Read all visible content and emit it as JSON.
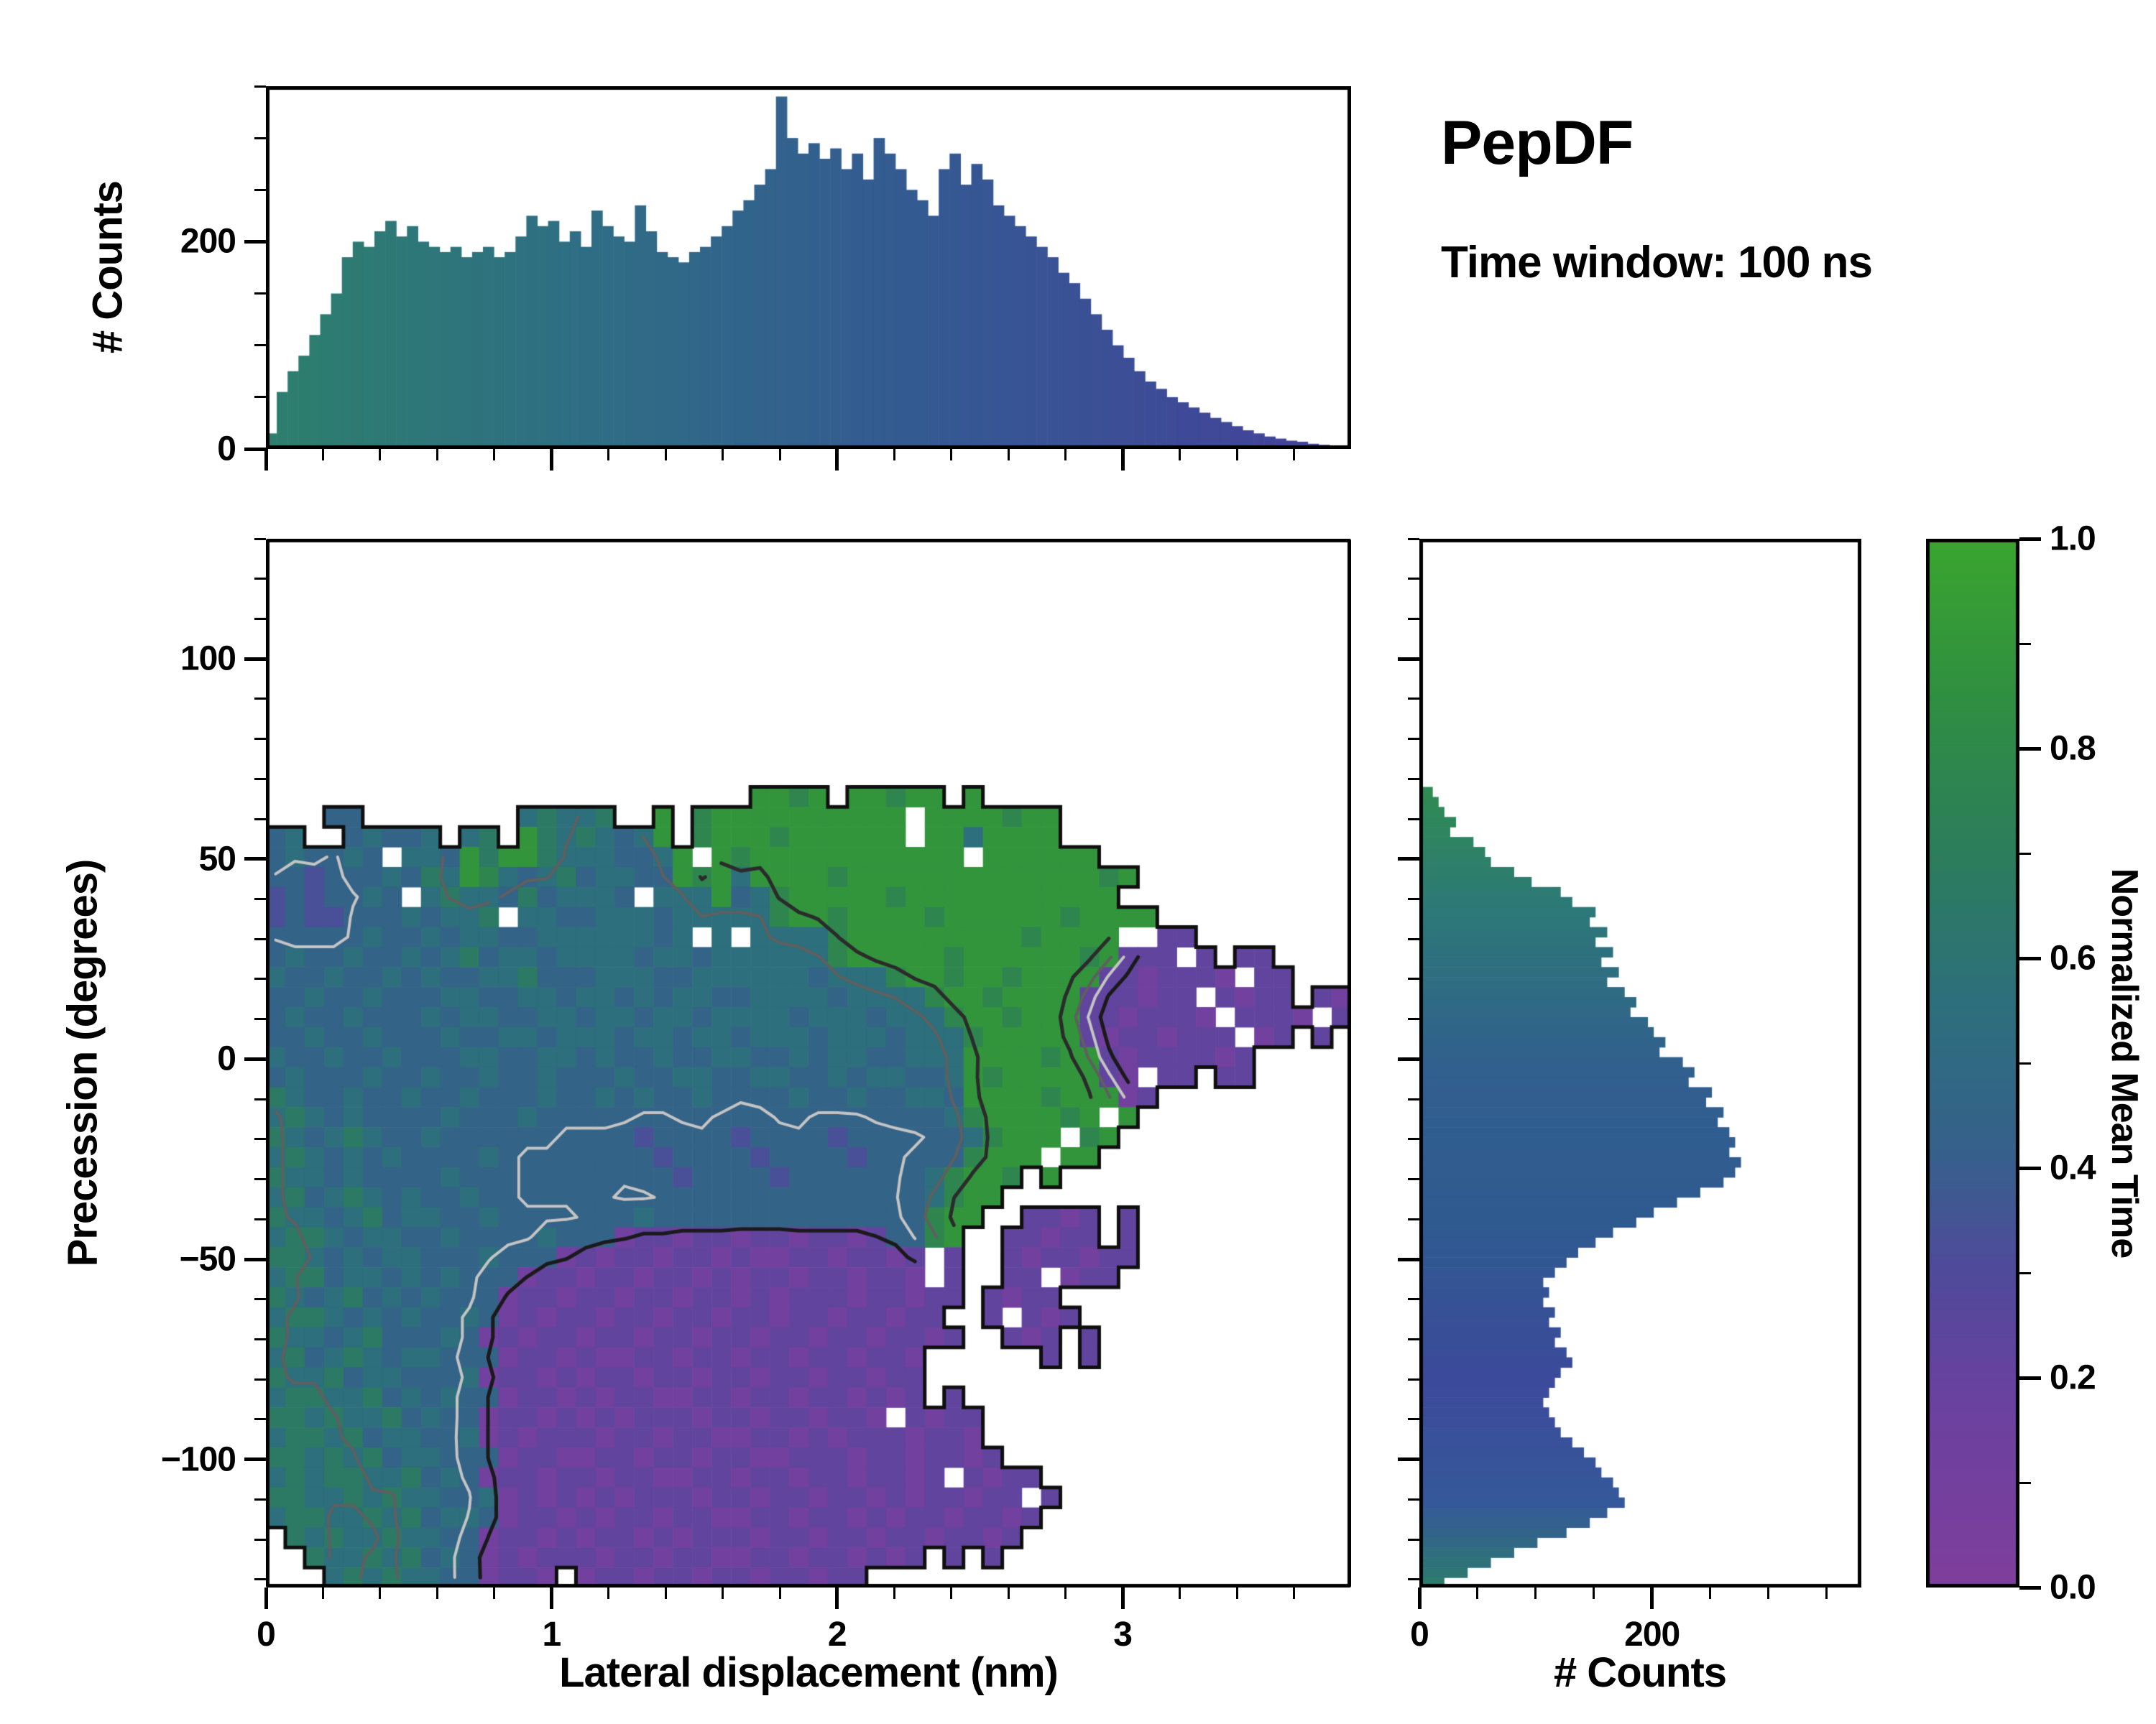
{
  "header": {
    "title": "PepDF",
    "subtitle": "Time window: 100 ns"
  },
  "colors": {
    "background": "#ffffff",
    "axis": "#000000",
    "text": "#000000",
    "boundary": "#0f0f0f"
  },
  "colormap": {
    "stops": [
      {
        "t": 0.0,
        "c": "#7f3e9c"
      },
      {
        "t": 0.18,
        "c": "#6a419f"
      },
      {
        "t": 0.3,
        "c": "#504a9b"
      },
      {
        "t": 0.42,
        "c": "#35618b"
      },
      {
        "t": 0.56,
        "c": "#2d6f7c"
      },
      {
        "t": 0.7,
        "c": "#2c7d5c"
      },
      {
        "t": 0.85,
        "c": "#2f8f41"
      },
      {
        "t": 1.0,
        "c": "#3aa52e"
      }
    ]
  },
  "chart_data": [
    {
      "type": "bar",
      "role": "top-marginal-histogram",
      "ylabel": "# Counts",
      "xlabel": "",
      "xlim": [
        0,
        3.8
      ],
      "ylim": [
        0,
        350
      ],
      "yticks": [
        0,
        200
      ],
      "bins": 100,
      "values": [
        15,
        55,
        75,
        90,
        110,
        130,
        150,
        185,
        200,
        195,
        210,
        220,
        205,
        215,
        200,
        195,
        190,
        195,
        185,
        190,
        195,
        185,
        190,
        205,
        225,
        215,
        220,
        200,
        210,
        195,
        230,
        215,
        205,
        200,
        235,
        210,
        190,
        185,
        180,
        190,
        195,
        205,
        215,
        230,
        240,
        255,
        270,
        340,
        300,
        285,
        295,
        280,
        290,
        270,
        285,
        260,
        300,
        285,
        270,
        250,
        240,
        225,
        270,
        285,
        255,
        275,
        260,
        235,
        225,
        215,
        205,
        195,
        185,
        170,
        160,
        145,
        130,
        115,
        100,
        88,
        75,
        65,
        58,
        50,
        45,
        40,
        35,
        30,
        26,
        22,
        18,
        15,
        12,
        10,
        8,
        7,
        5,
        4,
        3,
        2
      ],
      "gradient": {
        "stops": [
          {
            "t": 0.0,
            "c": "#2d7f6d"
          },
          {
            "t": 0.3,
            "c": "#2f6d85"
          },
          {
            "t": 0.6,
            "c": "#345a92"
          },
          {
            "t": 1.0,
            "c": "#44419a"
          }
        ]
      }
    },
    {
      "type": "heatmap",
      "role": "joint-2d-histogram",
      "xlabel": "Lateral displacement (nm)",
      "ylabel": "Precession (degrees)",
      "value_label": "Normalized Mean Time",
      "xlim": [
        0,
        3.8
      ],
      "ylim": [
        -132,
        130
      ],
      "xticks": [
        0,
        1,
        2,
        3
      ],
      "yticks": [
        -100,
        -50,
        0,
        50,
        100
      ],
      "vmin": 0.0,
      "vmax": 1.0,
      "cbar_ticks": [
        0.0,
        0.2,
        0.4,
        0.6,
        0.8,
        1.0
      ],
      "contours": {
        "levels": [
          0.3,
          0.45,
          0.6,
          0.78
        ],
        "colors": [
          "#1a1a1a",
          "#c4c4c4",
          "#5f5f5f",
          "#2b2b2b"
        ],
        "widths": [
          5,
          4,
          4,
          5
        ]
      },
      "grid": {
        "cols": 56,
        "rows": 40,
        "x0": 0,
        "x1": 3.8,
        "y_top": 68,
        "y_bottom": -132,
        "encoding": "each char: digit d => value d/9 of Normalized Mean Time, '.' => empty bin",
        "rows_data": [
          ".........................8878.88788.8..................",
          "...44........56556..8.78888888888.8888788...............",
          "45..45445.56.86565458.78887888888.8858888...............",
          "454454.554868865554458.8788888888888.888888.............",
          "443444546587545645544878588887888888888888878...........",
          "3434454.56554645554.555845788888788888888888............",
          "343344454556.554455545555578878888788888878888..........",
          "4444454454554455555545 5.5555788888888878888 .22........",
          "45445445456455455554554555555788888788888878222.2.22....",
          "54454454544556444555445555554555788788788882212221 22...",
          "445445444554455455454554455554555578878888222122 2122.212",
          "4544544454554455455455455554555455578878882212221 2221.22",
          "44544544454455455545545545554555455578888821221222 12.2..",
          "544544544455445545445445544545544555888878821222212.....",
          "454445445445445444544554455445455445878888821 22.22......",
          "6544544544544454454544544445445445548888788812..........",
          "5654544445444544444444444444444444457888878 8...........",
          "65456544544444444443444434444344444457888 78............",
          "5654545444454444444434444344443444447888 88.............",
          "655454444544444444444344443444444457887 8...............",
          "56456545445444444444444444444444445788..................",
          "6554564554454444444544444444444444788..2212.2...........",
          "566545544544445444122122122122124478..22122.2...........",
          "6654545544454441212212212112212212 2..2122122...........",
          "5664554545444122122122121221221221 2..22.122............",
          "654564545444122122122122121222122122.2122...............",
          "56654545445412122122122122122122122..2.212..............",
          "655456444541212212212212212212212212..212.2.............",
          "5645654554441221211221221221221221......2.2.............",
          "6556455444512212122122122122122122......................",
          "5665564545441221212211221221221212 2....................",
          "66565564544122121212221221221221 2122...................",
          "5665645544512122212212211221212221221...................",
          "66565645544412211221221221122212212212..................",
          "56566556454122122122112212212212212 2122................",
          "665565655445121212122212212212212122122 2...............",
          "5665565645541221212212211221221212212212................",
          ".65655655441221212212122212212212212212.................",
          "..65565645412122212212211221221212 2.2..................",
          "...565655441221.122122122122122........................."
        ]
      }
    },
    {
      "type": "bar",
      "role": "right-marginal-histogram",
      "orientation": "horizontal",
      "xlabel": "# Counts",
      "ylabel": "",
      "xlim": [
        0,
        380
      ],
      "xticks": [
        0,
        200
      ],
      "ylim": [
        -132,
        130
      ],
      "y_start": 68,
      "y_end": -132,
      "bins": 80,
      "values": [
        10,
        15,
        20,
        30,
        25,
        45,
        55,
        60,
        80,
        95,
        120,
        130,
        150,
        145,
        160,
        150,
        165,
        155,
        170,
        160,
        175,
        185,
        180,
        195,
        200,
        210,
        205,
        225,
        235,
        230,
        250,
        245,
        260,
        255,
        265,
        270,
        265,
        275,
        270,
        260,
        240,
        220,
        200,
        185,
        165,
        150,
        135,
        125,
        115,
        105,
        110,
        105,
        115,
        110,
        120,
        115,
        125,
        130,
        120,
        115,
        110,
        105,
        110,
        115,
        120,
        130,
        140,
        150,
        155,
        165,
        170,
        175,
        160,
        145,
        125,
        100,
        80,
        60,
        40,
        20
      ],
      "gradient": {
        "stops": [
          {
            "t": 0.0,
            "c": "#2f8b52"
          },
          {
            "t": 0.15,
            "c": "#2d7878"
          },
          {
            "t": 0.35,
            "c": "#315f8e"
          },
          {
            "t": 0.55,
            "c": "#2f5a90"
          },
          {
            "t": 0.75,
            "c": "#3c4a9b"
          },
          {
            "t": 0.9,
            "c": "#35589a"
          },
          {
            "t": 1.0,
            "c": "#2d7a6e"
          }
        ]
      }
    }
  ]
}
